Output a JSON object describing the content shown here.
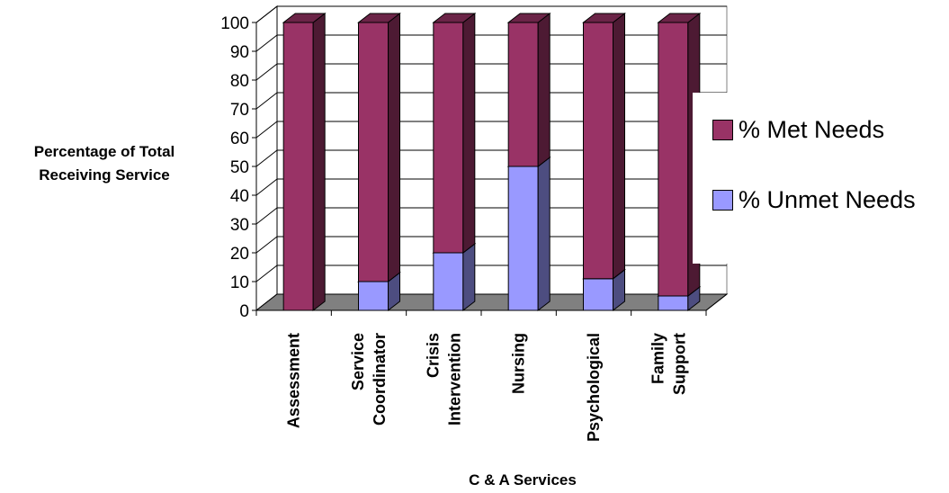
{
  "chart_data": {
    "type": "bar",
    "stacked": true,
    "three_d": true,
    "categories": [
      [
        "Assessment"
      ],
      [
        "Service",
        "Coordinator"
      ],
      [
        "Crisis",
        "Intervention"
      ],
      [
        "Nursing"
      ],
      [
        "Psychological"
      ],
      [
        "Family",
        "Support"
      ]
    ],
    "series": [
      {
        "name": "% Unmet Needs",
        "color": "#9999ff",
        "values": [
          0,
          10,
          20,
          50,
          11,
          5
        ]
      },
      {
        "name": "% Met Needs",
        "color": "#993366",
        "values": [
          100,
          90,
          80,
          50,
          89,
          95
        ]
      }
    ],
    "title": "",
    "xlabel": "C & A Services",
    "ylabel_lines": [
      "Percentage of Total",
      "Receiving Service"
    ],
    "ylim": [
      0,
      100
    ],
    "yticks": [
      "0",
      "10",
      "20",
      "30",
      "40",
      "50",
      "60",
      "70",
      "80",
      "90",
      "100"
    ],
    "grid": true,
    "legend_position": "right",
    "legend_order": [
      "% Met Needs",
      "% Unmet Needs"
    ],
    "floor_color": "#808080"
  }
}
